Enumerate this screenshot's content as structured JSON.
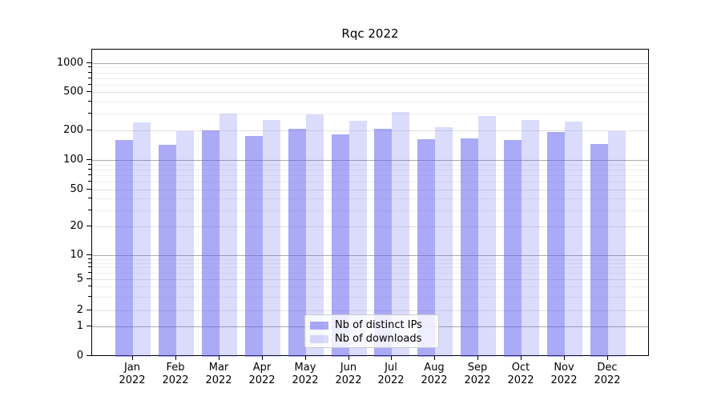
{
  "chart_data": {
    "type": "bar",
    "title": "Rqc 2022",
    "x_months": [
      "Jan",
      "Feb",
      "Mar",
      "Apr",
      "May",
      "Jun",
      "Jul",
      "Aug",
      "Sep",
      "Oct",
      "Nov",
      "Dec"
    ],
    "x_year": "2022",
    "categories": [
      "Jan 2022",
      "Feb 2022",
      "Mar 2022",
      "Apr 2022",
      "May 2022",
      "Jun 2022",
      "Jul 2022",
      "Aug 2022",
      "Sep 2022",
      "Oct 2022",
      "Nov 2022",
      "Dec 2022"
    ],
    "series": [
      {
        "name": "Nb of distinct IPs",
        "color": "rgba(85,85,240,0.5)",
        "values": [
          162,
          146,
          205,
          179,
          211,
          186,
          212,
          166,
          169,
          163,
          196,
          148
        ]
      },
      {
        "name": "Nb of downloads",
        "color": "rgba(85,85,240,0.21)",
        "values": [
          245,
          199,
          304,
          260,
          299,
          256,
          316,
          220,
          287,
          260,
          252,
          200
        ]
      }
    ],
    "yscale": "symlog",
    "yticks": [
      0,
      1,
      2,
      5,
      10,
      20,
      50,
      100,
      200,
      500,
      1000
    ],
    "ylim": [
      0,
      1400
    ],
    "grid": true,
    "legend_position": "lower center"
  },
  "colors": {
    "bar_dark": "rgba(85,85,240,0.5)",
    "bar_light": "rgba(85,85,240,0.21)",
    "grid_major": "#ababab",
    "grid_minor": "#e3e3e3",
    "grid_sub": "#f0f0f0",
    "axis": "#000000",
    "legend_border": "#cccccc"
  }
}
